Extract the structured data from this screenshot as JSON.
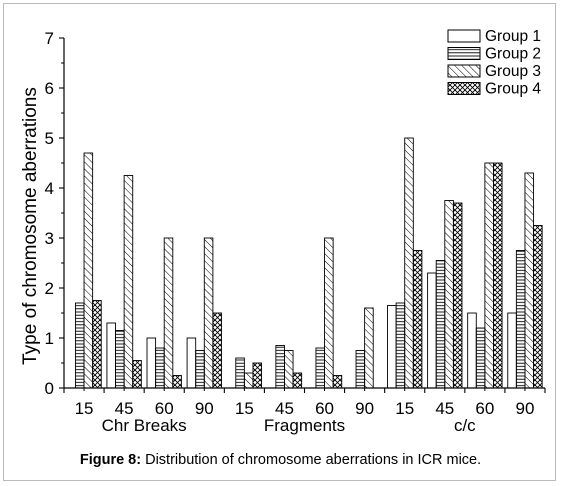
{
  "caption": {
    "label": "Figure 8:",
    "text": " Distribution of chromosome aberrations in ICR mice."
  },
  "chart_data": {
    "type": "bar",
    "ylabel": "Type of chromosome aberrations",
    "ylim": [
      0,
      7
    ],
    "yticks": [
      0,
      1,
      2,
      3,
      4,
      5,
      6,
      7
    ],
    "legend_position": "top-right",
    "group_labels": [
      "Chr Breaks",
      "Fragments",
      "c/c"
    ],
    "categories": [
      "15",
      "45",
      "60",
      "90",
      "15",
      "45",
      "60",
      "90",
      "15",
      "45",
      "60",
      "90"
    ],
    "series": [
      {
        "name": "Group 1",
        "pattern": "blank",
        "values": [
          0,
          1.3,
          1.0,
          1.0,
          0,
          0,
          0,
          0,
          1.65,
          2.3,
          1.5,
          1.5
        ]
      },
      {
        "name": "Group 2",
        "pattern": "horizontal-lines",
        "values": [
          1.7,
          1.15,
          0.8,
          0.75,
          0.6,
          0.85,
          0.8,
          0.75,
          1.7,
          2.55,
          1.2,
          2.75
        ]
      },
      {
        "name": "Group 3",
        "pattern": "diagonal-lines",
        "values": [
          4.7,
          4.25,
          3.0,
          3.0,
          0.3,
          0.75,
          3.0,
          1.6,
          5.0,
          3.75,
          4.5,
          4.3
        ]
      },
      {
        "name": "Group 4",
        "pattern": "crosshatch",
        "values": [
          1.75,
          0.55,
          0.25,
          1.5,
          0.5,
          0.3,
          0.25,
          0,
          2.75,
          3.7,
          4.5,
          3.25
        ]
      }
    ]
  }
}
